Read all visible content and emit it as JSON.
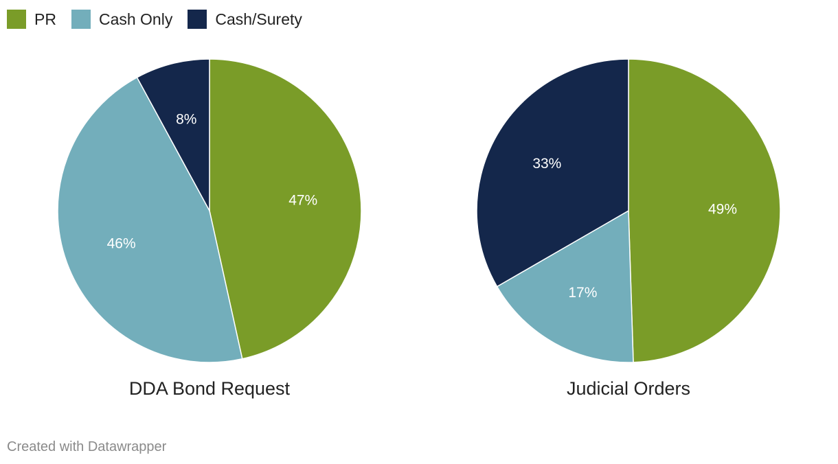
{
  "legend": {
    "items": [
      {
        "label": "PR",
        "color": "#7a9c28"
      },
      {
        "label": "Cash Only",
        "color": "#73aebb"
      },
      {
        "label": "Cash/Surety",
        "color": "#14274b"
      }
    ]
  },
  "chart_data": [
    {
      "type": "pie",
      "title": "DDA Bond Request",
      "categories": [
        "PR",
        "Cash Only",
        "Cash/Surety"
      ],
      "values": [
        47,
        46,
        8
      ],
      "labels": [
        "47%",
        "46%",
        "8%"
      ],
      "colors": [
        "#7a9c28",
        "#73aebb",
        "#14274b"
      ]
    },
    {
      "type": "pie",
      "title": "Judicial Orders",
      "categories": [
        "PR",
        "Cash Only",
        "Cash/Surety"
      ],
      "values": [
        49,
        17,
        33
      ],
      "labels": [
        "49%",
        "17%",
        "33%"
      ],
      "colors": [
        "#7a9c28",
        "#73aebb",
        "#14274b"
      ]
    }
  ],
  "footer": {
    "credit": "Created with Datawrapper"
  }
}
